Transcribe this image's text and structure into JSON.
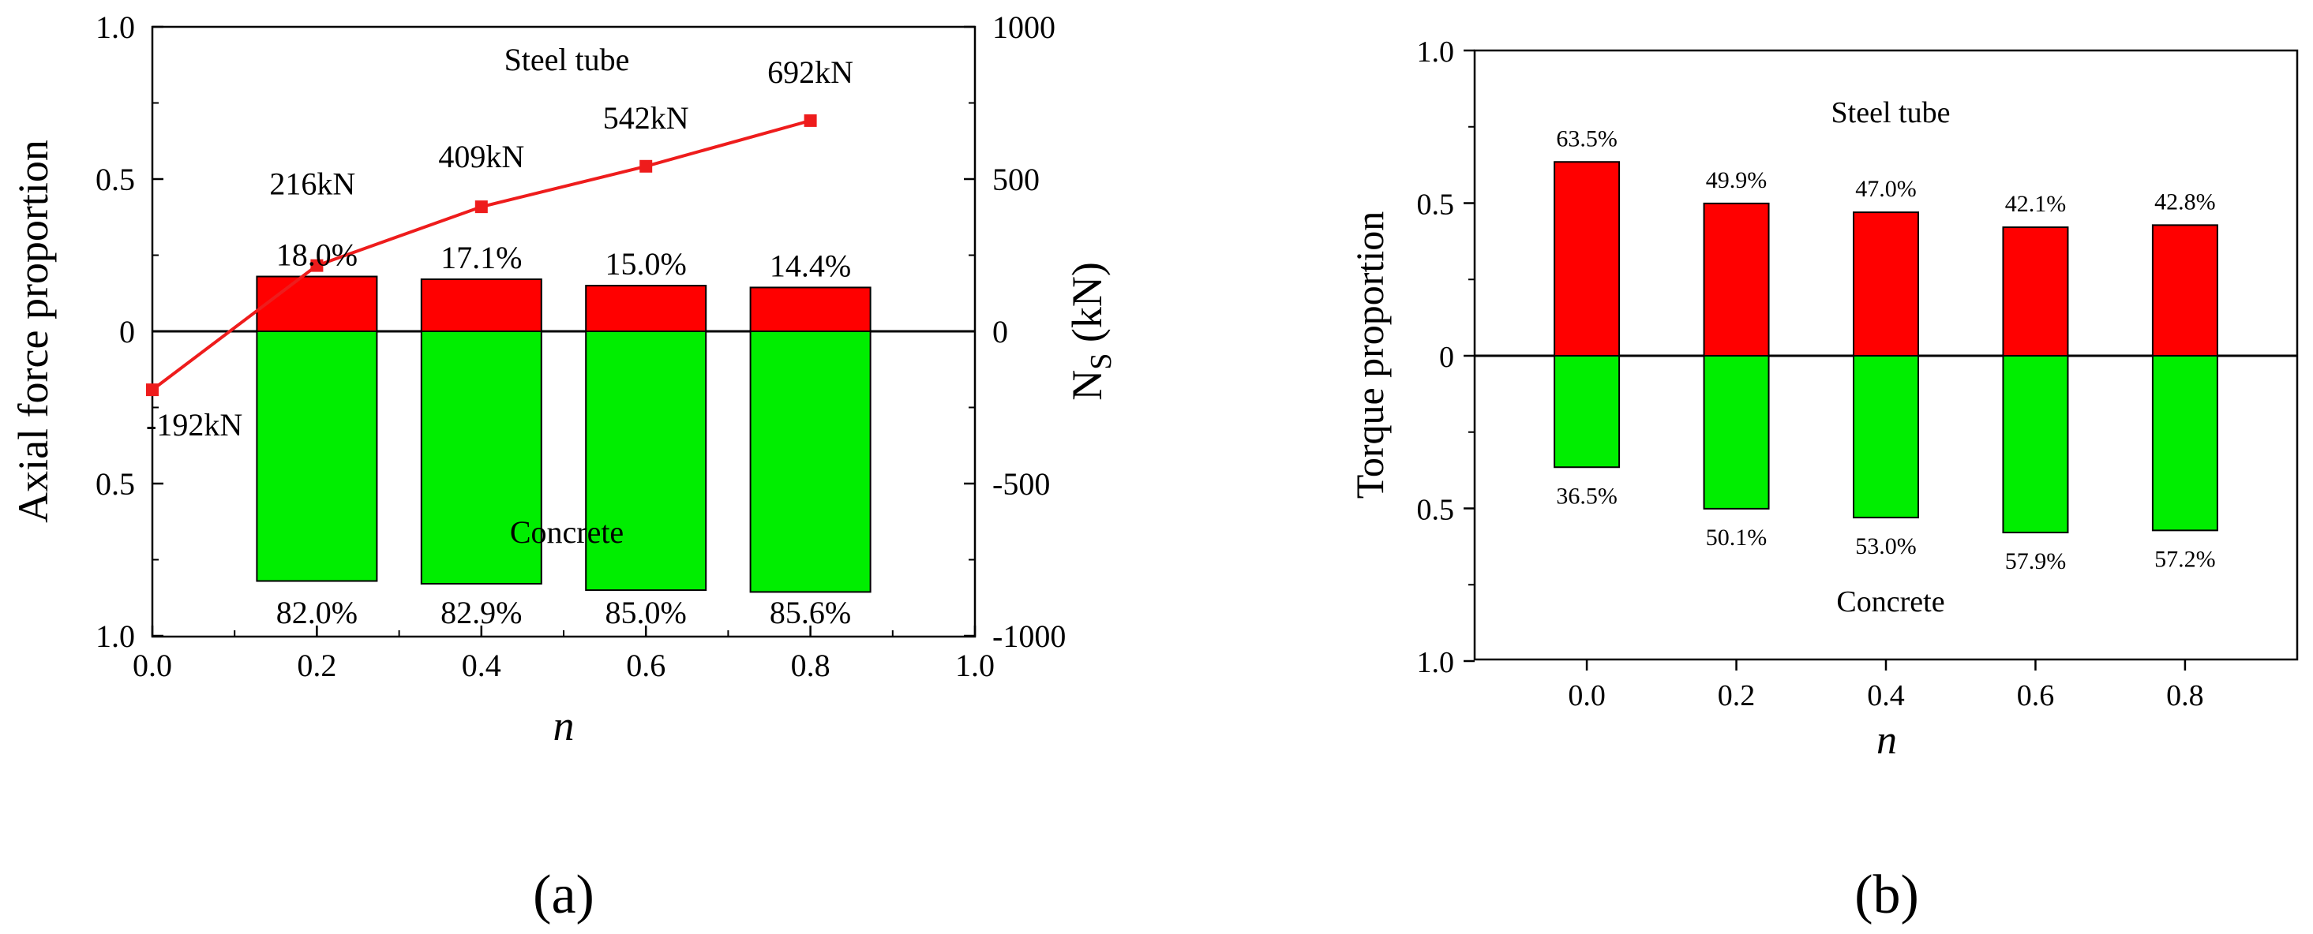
{
  "chart_data": [
    {
      "panel_label": "(a)",
      "type": "bar",
      "description_type": "stacked proportion bars with secondary-axis line",
      "xlabel": "n",
      "ylabel": "Axial force proportion",
      "y2label": "N",
      "y2label_sub": "S",
      "y2label_unit": " (kN)",
      "xlim": [
        0.0,
        1.0
      ],
      "xticks": [
        "0.0",
        "0.2",
        "0.4",
        "0.6",
        "0.8",
        "1.0"
      ],
      "ylim": [
        -1.0,
        1.0
      ],
      "yticks": [
        "1.0",
        "0.5",
        "0",
        "0.5",
        "1.0"
      ],
      "y2lim": [
        -1000,
        1000
      ],
      "y2ticks": [
        "1000",
        "500",
        "0",
        "-500",
        "-1000"
      ],
      "categories": [
        0.2,
        0.4,
        0.6,
        0.8
      ],
      "series": [
        {
          "name": "Steel tube",
          "color": "#ff0000",
          "values": [
            0.18,
            0.171,
            0.15,
            0.144
          ],
          "labels": [
            "18.0%",
            "17.1%",
            "15.0%",
            "14.4%"
          ]
        },
        {
          "name": "Concrete",
          "color": "#00ee00",
          "values": [
            0.82,
            0.829,
            0.85,
            0.856
          ],
          "labels": [
            "82.0%",
            "82.9%",
            "85.0%",
            "85.6%"
          ]
        }
      ],
      "line_series": {
        "name": "N_S",
        "color": "#ee1c1c",
        "x": [
          0.0,
          0.2,
          0.4,
          0.6,
          0.8
        ],
        "values": [
          -192,
          216,
          409,
          542,
          692
        ],
        "labels": [
          "-192kN",
          "216kN",
          "409kN",
          "542kN",
          "692kN"
        ]
      },
      "annotations": [
        "Steel tube",
        "Concrete"
      ]
    },
    {
      "panel_label": "(b)",
      "type": "bar",
      "description_type": "stacked proportion bars",
      "xlabel": "n",
      "ylabel": "Torque proportion",
      "xlim": [
        -0.15,
        0.95
      ],
      "xticks": [
        "0.0",
        "0.2",
        "0.4",
        "0.6",
        "0.8"
      ],
      "ylim": [
        -1.0,
        1.0
      ],
      "yticks": [
        "1.0",
        "0.5",
        "0",
        "0.5",
        "1.0"
      ],
      "categories": [
        0.0,
        0.2,
        0.4,
        0.6,
        0.8
      ],
      "series": [
        {
          "name": "Steel tube",
          "color": "#ff0000",
          "values": [
            0.635,
            0.499,
            0.47,
            0.421,
            0.428
          ],
          "labels": [
            "63.5%",
            "49.9%",
            "47.0%",
            "42.1%",
            "42.8%"
          ]
        },
        {
          "name": "Concrete",
          "color": "#00ee00",
          "values": [
            0.365,
            0.501,
            0.53,
            0.579,
            0.572
          ],
          "labels": [
            "36.5%",
            "50.1%",
            "53.0%",
            "57.9%",
            "57.2%"
          ]
        }
      ],
      "annotations": [
        "Steel tube",
        "Concrete"
      ]
    }
  ]
}
